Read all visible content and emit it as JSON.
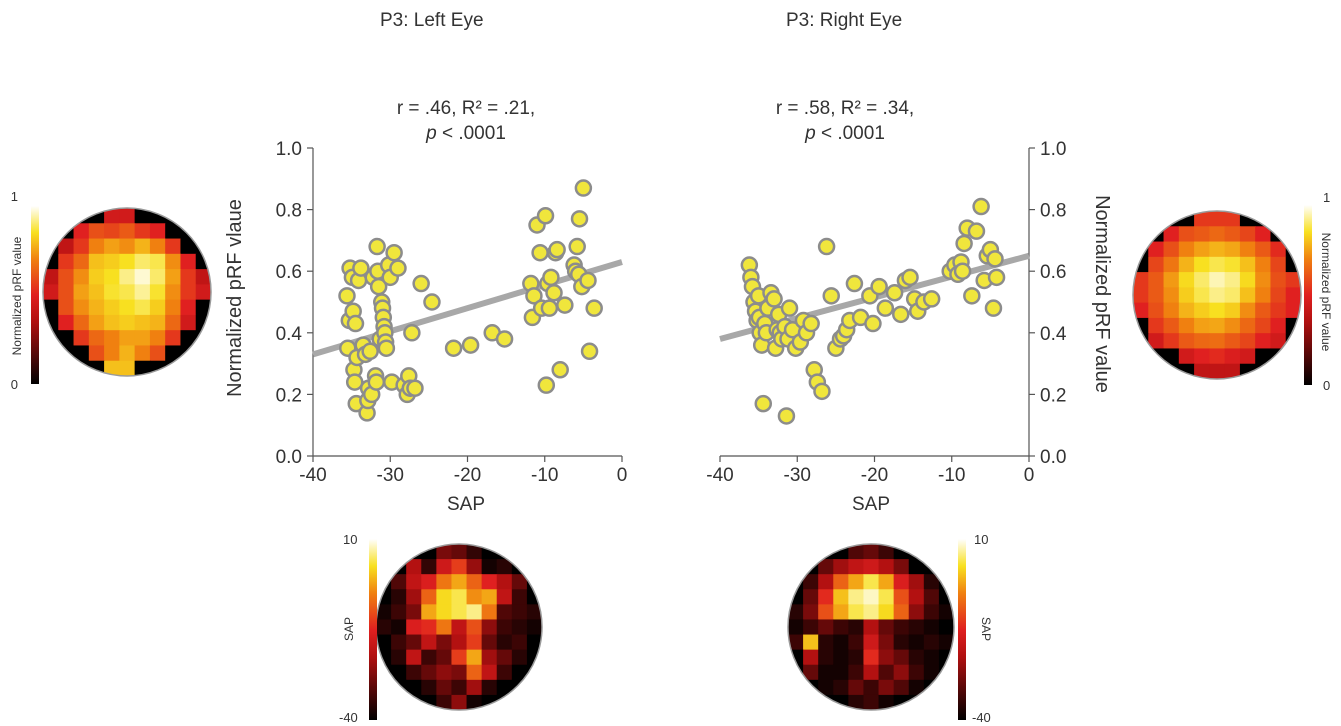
{
  "panels": [
    {
      "title": "P3: Left Eye",
      "stats_line1": "r = .46, R² = .21,",
      "stats_p_symbol": "p",
      "stats_p_rest": " < .0001",
      "xlabel": "SAP",
      "ylabel": "Normalized pRF vlaue",
      "colorbar_top": {
        "label": "Normalized pRF value",
        "max_label": "1",
        "min_label": "0"
      },
      "colorbar_bottom": {
        "label": "SAP",
        "max_label": "10",
        "min_label": "-40"
      }
    },
    {
      "title": "P3: Right Eye",
      "stats_line1": "r = .58, R² = .34,",
      "stats_p_symbol": "p",
      "stats_p_rest": " < .0001",
      "xlabel": "SAP",
      "ylabel": "Normalized pRF value",
      "colorbar_top": {
        "label": "Normalized pRF value",
        "max_label": "1",
        "min_label": "0"
      },
      "colorbar_bottom": {
        "label": "SAP",
        "max_label": "10",
        "min_label": "-40"
      }
    }
  ],
  "chart_data": [
    {
      "type": "scatter",
      "title": "P3: Left Eye",
      "xlabel": "SAP",
      "ylabel": "Normalized pRF vlaue",
      "xlim": [
        -40,
        0
      ],
      "ylim": [
        0,
        1
      ],
      "xticks": [
        "-40",
        "-30",
        "-20",
        "-10",
        "0"
      ],
      "yticks": [
        "0.0",
        "0.2",
        "0.4",
        "0.6",
        "0.8",
        "1.0"
      ],
      "y_axis_side": "left",
      "grid": false,
      "point_color": "#f0e63c",
      "point_edge_color": "#8c8c8c",
      "fit_line": {
        "x": [
          -40,
          0
        ],
        "y": [
          0.33,
          0.63
        ],
        "color": "#a8a8a8"
      },
      "x": [
        -35.6,
        -35.5,
        -35.3,
        -35.2,
        -34.9,
        -34.8,
        -34.7,
        -34.6,
        -34.5,
        -34.4,
        -34.3,
        -34.1,
        -33.8,
        -33.5,
        -33.2,
        -33.0,
        -32.9,
        -32.8,
        -32.6,
        -32.4,
        -32.2,
        -31.9,
        -31.8,
        -31.7,
        -31.6,
        -31.5,
        -31.3,
        -31.1,
        -31.0,
        -30.9,
        -30.8,
        -30.7,
        -30.6,
        -30.5,
        -30.2,
        -30.0,
        -29.8,
        -29.5,
        -29.0,
        -28.2,
        -27.8,
        -27.6,
        -27.4,
        -27.2,
        -26.8,
        -26.0,
        -24.6,
        -21.8,
        -19.6,
        -16.8,
        -15.2,
        -11.8,
        -11.6,
        -11.4,
        -11.0,
        -10.6,
        -10.4,
        -9.9,
        -9.8,
        -9.6,
        -9.4,
        -9.2,
        -8.8,
        -8.6,
        -8.4,
        -8.0,
        -7.4,
        -6.2,
        -6.0,
        -5.8,
        -5.6,
        -5.5,
        -5.2,
        -5.0,
        -4.4,
        -4.2,
        -3.6
      ],
      "y": [
        0.52,
        0.35,
        0.44,
        0.61,
        0.58,
        0.47,
        0.28,
        0.24,
        0.43,
        0.17,
        0.32,
        0.57,
        0.61,
        0.36,
        0.33,
        0.14,
        0.18,
        0.22,
        0.34,
        0.2,
        0.58,
        0.26,
        0.24,
        0.68,
        0.6,
        0.55,
        0.38,
        0.5,
        0.48,
        0.45,
        0.42,
        0.4,
        0.37,
        0.35,
        0.62,
        0.58,
        0.24,
        0.66,
        0.61,
        0.23,
        0.2,
        0.26,
        0.22,
        0.4,
        0.22,
        0.56,
        0.5,
        0.35,
        0.36,
        0.4,
        0.38,
        0.56,
        0.45,
        0.52,
        0.75,
        0.66,
        0.48,
        0.78,
        0.23,
        0.56,
        0.48,
        0.58,
        0.53,
        0.66,
        0.67,
        0.28,
        0.49,
        0.62,
        0.6,
        0.68,
        0.59,
        0.77,
        0.55,
        0.87,
        0.57,
        0.34,
        0.48
      ]
    },
    {
      "type": "scatter",
      "title": "P3: Right Eye",
      "xlabel": "SAP",
      "ylabel": "Normalized pRF value",
      "xlim": [
        -40,
        0
      ],
      "ylim": [
        0,
        1
      ],
      "xticks": [
        "-40",
        "-30",
        "-20",
        "-10",
        "0"
      ],
      "yticks": [
        "0.0",
        "0.2",
        "0.4",
        "0.6",
        "0.8",
        "1.0"
      ],
      "y_axis_side": "right",
      "grid": false,
      "point_color": "#f0e63c",
      "point_edge_color": "#8c8c8c",
      "fit_line": {
        "x": [
          -40,
          0
        ],
        "y": [
          0.38,
          0.65
        ],
        "color": "#a8a8a8"
      },
      "x": [
        -36.2,
        -36.0,
        -35.8,
        -35.6,
        -35.4,
        -35.2,
        -35.0,
        -34.9,
        -34.8,
        -34.6,
        -34.4,
        -34.2,
        -34.0,
        -33.8,
        -33.4,
        -33.0,
        -32.8,
        -32.6,
        -32.4,
        -32.2,
        -32.0,
        -31.6,
        -31.4,
        -31.2,
        -31.0,
        -30.6,
        -30.2,
        -29.6,
        -29.2,
        -28.8,
        -28.2,
        -27.8,
        -27.4,
        -26.8,
        -26.2,
        -25.6,
        -25.0,
        -24.4,
        -24.0,
        -23.6,
        -23.2,
        -22.6,
        -21.8,
        -20.6,
        -20.2,
        -19.4,
        -18.6,
        -17.4,
        -16.6,
        -16.0,
        -15.4,
        -14.8,
        -14.4,
        -13.6,
        -12.6,
        -10.2,
        -9.6,
        -9.2,
        -8.8,
        -8.6,
        -8.4,
        -8.0,
        -7.4,
        -6.8,
        -6.2,
        -5.8,
        -5.4,
        -5.0,
        -4.6,
        -4.4,
        -4.2
      ],
      "y": [
        0.62,
        0.58,
        0.55,
        0.5,
        0.47,
        0.44,
        0.52,
        0.45,
        0.4,
        0.36,
        0.17,
        0.43,
        0.4,
        0.48,
        0.53,
        0.51,
        0.35,
        0.41,
        0.46,
        0.4,
        0.38,
        0.42,
        0.13,
        0.38,
        0.48,
        0.41,
        0.35,
        0.37,
        0.44,
        0.4,
        0.43,
        0.28,
        0.24,
        0.21,
        0.68,
        0.52,
        0.35,
        0.38,
        0.39,
        0.41,
        0.44,
        0.56,
        0.45,
        0.52,
        0.43,
        0.55,
        0.48,
        0.53,
        0.46,
        0.57,
        0.58,
        0.51,
        0.47,
        0.5,
        0.51,
        0.6,
        0.62,
        0.59,
        0.63,
        0.6,
        0.69,
        0.74,
        0.52,
        0.73,
        0.81,
        0.57,
        0.65,
        0.67,
        0.48,
        0.64,
        0.58
      ]
    },
    {
      "type": "heatmap",
      "title": "",
      "position": "top-left",
      "colorscale": "hot",
      "zlim": [
        0,
        1
      ],
      "z": [
        [
          0,
          0,
          0,
          0,
          0.45,
          0.45,
          0,
          0,
          0,
          0,
          0
        ],
        [
          0,
          0,
          0.5,
          0.6,
          0.58,
          0.62,
          0.55,
          0.5,
          0,
          0,
          0
        ],
        [
          0,
          0.4,
          0.55,
          0.7,
          0.75,
          0.72,
          0.78,
          0.7,
          0.55,
          0,
          0
        ],
        [
          0,
          0.55,
          0.65,
          0.8,
          0.82,
          0.85,
          0.9,
          0.88,
          0.72,
          0.5,
          0
        ],
        [
          0.4,
          0.6,
          0.72,
          0.82,
          0.85,
          0.92,
          0.97,
          0.9,
          0.75,
          0.55,
          0.4
        ],
        [
          0.45,
          0.6,
          0.75,
          0.8,
          0.86,
          0.88,
          0.93,
          0.86,
          0.72,
          0.55,
          0.45
        ],
        [
          0,
          0.6,
          0.72,
          0.78,
          0.82,
          0.85,
          0.88,
          0.82,
          0.7,
          0.5,
          0
        ],
        [
          0,
          0.5,
          0.65,
          0.75,
          0.8,
          0.82,
          0.8,
          0.78,
          0.65,
          0.45,
          0
        ],
        [
          0,
          0,
          0.55,
          0.65,
          0.7,
          0.75,
          0.75,
          0.7,
          0.55,
          0,
          0
        ],
        [
          0,
          0,
          0,
          0.6,
          0.7,
          0.78,
          0.7,
          0.6,
          0,
          0,
          0
        ],
        [
          0,
          0,
          0,
          0,
          0.8,
          0.8,
          0,
          0,
          0,
          0,
          0
        ]
      ]
    },
    {
      "type": "heatmap",
      "title": "",
      "position": "top-right",
      "colorscale": "hot",
      "zlim": [
        0,
        1
      ],
      "z": [
        [
          0,
          0,
          0,
          0,
          0.55,
          0.55,
          0.55,
          0,
          0,
          0,
          0
        ],
        [
          0,
          0,
          0.5,
          0.6,
          0.62,
          0.65,
          0.62,
          0.58,
          0.5,
          0,
          0
        ],
        [
          0,
          0.5,
          0.6,
          0.7,
          0.75,
          0.78,
          0.76,
          0.7,
          0.62,
          0.52,
          0
        ],
        [
          0,
          0.58,
          0.68,
          0.78,
          0.85,
          0.88,
          0.86,
          0.8,
          0.7,
          0.58,
          0
        ],
        [
          0.55,
          0.62,
          0.74,
          0.84,
          0.9,
          0.95,
          0.92,
          0.84,
          0.72,
          0.6,
          0.55
        ],
        [
          0.55,
          0.62,
          0.72,
          0.82,
          0.88,
          0.92,
          0.9,
          0.8,
          0.7,
          0.58,
          0.5
        ],
        [
          0.5,
          0.6,
          0.7,
          0.78,
          0.82,
          0.85,
          0.82,
          0.72,
          0.62,
          0.55,
          0.5
        ],
        [
          0,
          0.55,
          0.62,
          0.7,
          0.75,
          0.76,
          0.72,
          0.65,
          0.58,
          0.5,
          0
        ],
        [
          0,
          0.45,
          0.55,
          0.62,
          0.65,
          0.66,
          0.62,
          0.58,
          0.5,
          0.45,
          0
        ],
        [
          0,
          0,
          0,
          0.45,
          0.5,
          0.52,
          0.48,
          0.45,
          0,
          0,
          0
        ],
        [
          0,
          0,
          0,
          0,
          0.4,
          0.4,
          0.4,
          0,
          0,
          0,
          0
        ]
      ]
    },
    {
      "type": "heatmap",
      "title": "",
      "position": "bottom-left",
      "colorscale": "hot",
      "zlim": [
        -40,
        10
      ],
      "z": [
        [
          -40,
          -40,
          -40,
          -40,
          -28,
          -30,
          -35,
          -40,
          -40,
          -40,
          -40
        ],
        [
          -40,
          -40,
          -22,
          -35,
          -18,
          -12,
          -25,
          -38,
          -36,
          -40,
          -40
        ],
        [
          -40,
          -32,
          -20,
          -16,
          -6,
          -2,
          -8,
          -15,
          -22,
          -30,
          -40
        ],
        [
          -40,
          -36,
          -24,
          -8,
          2,
          4,
          -4,
          -2,
          -20,
          -34,
          -40
        ],
        [
          -38,
          -34,
          -28,
          -2,
          2,
          4,
          6,
          -6,
          -32,
          -34,
          -36
        ],
        [
          -36,
          -38,
          -16,
          -14,
          -6,
          -20,
          -10,
          -26,
          -34,
          -36,
          -38
        ],
        [
          -40,
          -34,
          -30,
          -20,
          -28,
          -22,
          -12,
          -30,
          -36,
          -34,
          -40
        ],
        [
          -40,
          -36,
          -20,
          -34,
          -30,
          -12,
          -2,
          -24,
          -30,
          -36,
          -40
        ],
        [
          -40,
          -40,
          -34,
          -30,
          -26,
          -28,
          -8,
          -20,
          -34,
          -40,
          -40
        ],
        [
          -40,
          -40,
          -40,
          -36,
          -30,
          -34,
          -24,
          -36,
          -40,
          -40,
          -40
        ],
        [
          -40,
          -40,
          -40,
          -40,
          -34,
          -26,
          -38,
          -40,
          -40,
          -40,
          -40
        ]
      ]
    },
    {
      "type": "heatmap",
      "title": "",
      "position": "bottom-right",
      "colorscale": "hot",
      "zlim": [
        -40,
        10
      ],
      "z": [
        [
          -40,
          -40,
          -40,
          -40,
          -32,
          -30,
          -34,
          -40,
          -40,
          -40,
          -40
        ],
        [
          -40,
          -40,
          -30,
          -24,
          -20,
          -18,
          -22,
          -28,
          -40,
          -40,
          -40
        ],
        [
          -40,
          -34,
          -22,
          -8,
          -2,
          4,
          -2,
          -16,
          -24,
          -36,
          -40
        ],
        [
          -40,
          -30,
          -14,
          0,
          6,
          8,
          4,
          -10,
          -22,
          -32,
          -40
        ],
        [
          -36,
          -28,
          -10,
          -2,
          4,
          6,
          2,
          -8,
          -26,
          -34,
          -38
        ],
        [
          -38,
          -34,
          -30,
          -34,
          -36,
          -22,
          -30,
          -34,
          -36,
          -38,
          -40
        ],
        [
          -34,
          0,
          -36,
          -38,
          -34,
          -18,
          -28,
          -36,
          -38,
          -36,
          -38
        ],
        [
          -40,
          -22,
          -36,
          -38,
          -36,
          -14,
          -26,
          -30,
          -36,
          -38,
          -40
        ],
        [
          -40,
          -30,
          -38,
          -38,
          -34,
          -22,
          -32,
          -26,
          -34,
          -38,
          -40
        ],
        [
          -40,
          -40,
          -38,
          -36,
          -30,
          -34,
          -28,
          -32,
          -38,
          -40,
          -40
        ],
        [
          -40,
          -40,
          -40,
          -40,
          -36,
          -34,
          -38,
          -40,
          -40,
          -40,
          -40
        ]
      ]
    }
  ]
}
